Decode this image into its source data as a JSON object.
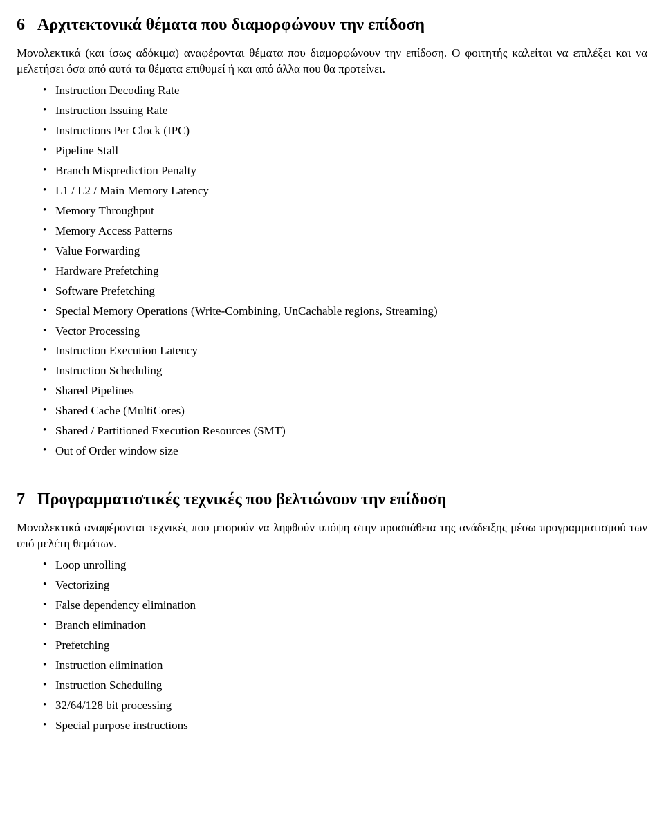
{
  "section6": {
    "number": "6",
    "title": "Αρχιτεκτονικά θέματα που διαμορφώνουν την επίδοση",
    "paragraph": "Μονολεκτικά (και ίσως αδόκιμα) αναφέρονται θέματα που διαμορφώνουν την επίδοση. Ο φοιτητής καλείται να επιλέξει και να μελετήσει όσα από αυτά τα θέματα επιθυμεί ή και από άλλα που θα προτείνει.",
    "items": [
      "Instruction Decoding Rate",
      "Instruction Issuing Rate",
      "Instructions Per Clock (IPC)",
      "Pipeline Stall",
      "Branch Misprediction Penalty",
      "L1 / L2 / Main Memory Latency",
      "Memory Throughput",
      "Memory Access Patterns",
      "Value Forwarding",
      "Hardware Prefetching",
      "Software Prefetching",
      "Special Memory Operations (Write-Combining, UnCachable regions, Streaming)",
      "Vector Processing",
      "Instruction Execution Latency",
      "Instruction Scheduling",
      "Shared Pipelines",
      "Shared Cache (MultiCores)",
      "Shared / Partitioned Execution Resources (SMT)",
      "Out of Order window size"
    ]
  },
  "section7": {
    "number": "7",
    "title": "Προγραμματιστικές τεχνικές που βελτιώνουν την επίδοση",
    "paragraph": "Μονολεκτικά αναφέρονται τεχνικές που μπορούν να ληφθούν υπόψη στην προσπάθεια της ανάδειξης μέσω προγραμματισμού των υπό μελέτη θεμάτων.",
    "items": [
      "Loop unrolling",
      "Vectorizing",
      "False dependency elimination",
      "Branch elimination",
      "Prefetching",
      "Instruction elimination",
      "Instruction Scheduling",
      "32/64/128 bit processing",
      "Special purpose instructions"
    ]
  }
}
